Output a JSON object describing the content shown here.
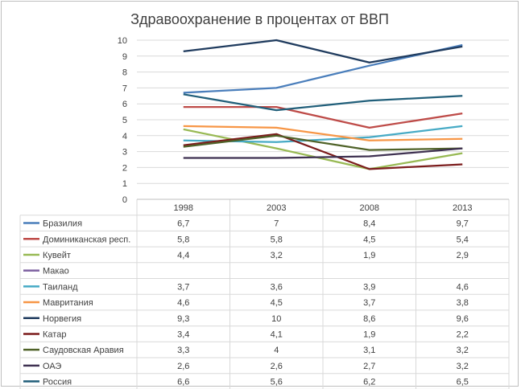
{
  "chart_data": {
    "type": "line",
    "title": "Здравоохранение в процентах от ВВП",
    "categories": [
      "1998",
      "2003",
      "2008",
      "2013"
    ],
    "ylim": [
      0,
      10
    ],
    "yticks": [
      "0",
      "1",
      "2",
      "3",
      "4",
      "5",
      "6",
      "7",
      "8",
      "9",
      "10"
    ],
    "grid": true,
    "legend": "data-table",
    "series": [
      {
        "name": "Бразилия",
        "color": "#4a7ebb",
        "values": [
          6.7,
          7,
          8.4,
          9.7
        ],
        "labels": [
          "6,7",
          "7",
          "8,4",
          "9,7"
        ]
      },
      {
        "name": "Доминиканская респ.",
        "color": "#be4b48",
        "values": [
          5.8,
          5.8,
          4.5,
          5.4
        ],
        "labels": [
          "5,8",
          "5,8",
          "4,5",
          "5,4"
        ]
      },
      {
        "name": "Кувейт",
        "color": "#98b954",
        "values": [
          4.4,
          3.2,
          1.9,
          2.9
        ],
        "labels": [
          "4,4",
          "3,2",
          "1,9",
          "2,9"
        ]
      },
      {
        "name": "Макао",
        "color": "#7d60a0",
        "values": [
          null,
          null,
          null,
          null
        ],
        "labels": [
          "",
          "",
          "",
          ""
        ]
      },
      {
        "name": "Таиланд",
        "color": "#46aac5",
        "values": [
          3.7,
          3.6,
          3.9,
          4.6
        ],
        "labels": [
          "3,7",
          "3,6",
          "3,9",
          "4,6"
        ]
      },
      {
        "name": "Мавритания",
        "color": "#f79646",
        "values": [
          4.6,
          4.5,
          3.7,
          3.8
        ],
        "labels": [
          "4,6",
          "4,5",
          "3,7",
          "3,8"
        ]
      },
      {
        "name": "Норвегия",
        "color": "#1f3b5e",
        "values": [
          9.3,
          10,
          8.6,
          9.6
        ],
        "labels": [
          "9,3",
          "10",
          "8,6",
          "9,6"
        ]
      },
      {
        "name": "Катар",
        "color": "#7b1c1c",
        "values": [
          3.4,
          4.1,
          1.9,
          2.2
        ],
        "labels": [
          "3,4",
          "4,1",
          "1,9",
          "2,2"
        ]
      },
      {
        "name": "Саудовская Аравия",
        "color": "#4f6228",
        "values": [
          3.3,
          4,
          3.1,
          3.2
        ],
        "labels": [
          "3,3",
          "4",
          "3,1",
          "3,2"
        ]
      },
      {
        "name": "ОАЭ",
        "color": "#3f3151",
        "values": [
          2.6,
          2.6,
          2.7,
          3.2
        ],
        "labels": [
          "2,6",
          "2,6",
          "2,7",
          "3,2"
        ]
      },
      {
        "name": "Россия",
        "color": "#215f7a",
        "values": [
          6.6,
          5.6,
          6.2,
          6.5
        ],
        "labels": [
          "6,6",
          "5,6",
          "6,2",
          "6,5"
        ]
      }
    ]
  }
}
